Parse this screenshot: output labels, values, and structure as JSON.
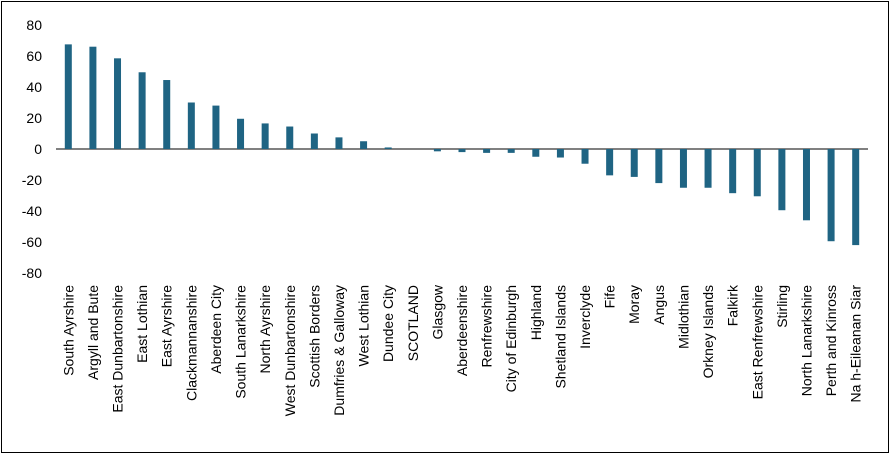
{
  "chart_data": {
    "type": "bar",
    "title": "",
    "xlabel": "",
    "ylabel": "",
    "ylim": [
      -80,
      80
    ],
    "yticks": [
      80,
      60,
      40,
      20,
      0,
      -20,
      -40,
      -60,
      -80
    ],
    "grid": false,
    "legend": "none",
    "bar_color": "#1f6483",
    "categories": [
      "South Ayrshire",
      "Argyll and Bute",
      "East Dunbartonshire",
      "East Lothian",
      "East Ayrshire",
      "Clackmannanshire",
      "Aberdeen City",
      "South Lanarkshire",
      "North Ayrshire",
      "West Dunbartonshire",
      "Scottish Borders",
      "Dumfries & Galloway",
      "West Lothian",
      "Dundee City",
      "SCOTLAND",
      "Glasgow",
      "Aberdeenshire",
      "Renfrewshire",
      "City of Edinburgh",
      "Highland",
      "Shetland Islands",
      "Inverclyde",
      "Fife",
      "Moray",
      "Angus",
      "Midlothian",
      "Orkney Islands",
      "Falkirk",
      "East Renfrewshire",
      "Stirling",
      "North Lanarkshire",
      "Perth and Kinross",
      "Na h-Eileanan Siar"
    ],
    "values": [
      67.5,
      66,
      58.5,
      49.5,
      44.5,
      30,
      28,
      19.5,
      16.5,
      14.5,
      10,
      7.5,
      5,
      1,
      0,
      -1.5,
      -2,
      -2.5,
      -2.5,
      -5,
      -5.5,
      -9.5,
      -17,
      -18,
      -22,
      -25,
      -25,
      -28.5,
      -30.5,
      -39.5,
      -46,
      -59.5,
      -62
    ]
  }
}
